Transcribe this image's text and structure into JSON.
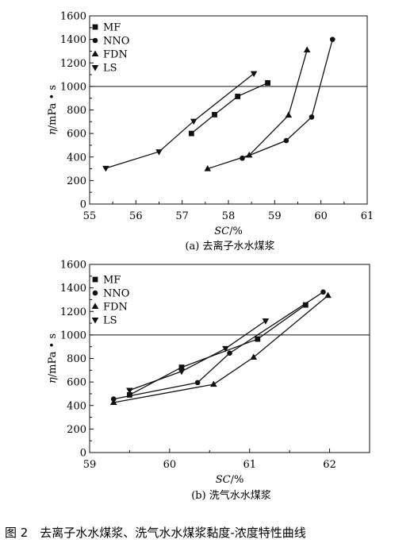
{
  "figure_caption": "图 2　去离子水水煤浆、洗气水水煤浆黏度-浓度特性曲线",
  "chart_data": [
    {
      "type": "line",
      "caption": "(a) 去离子水水煤浆",
      "xlabel_italic": "SC",
      "xlabel_rest": "/%",
      "ylabel_italic": "η",
      "ylabel_rest": "/mPa • s",
      "xlim": [
        55,
        61
      ],
      "ylim": [
        0,
        1600
      ],
      "xticks": [
        "55",
        "56",
        "57",
        "58",
        "59",
        "60",
        "61"
      ],
      "yticks": [
        "0",
        "200",
        "400",
        "600",
        "800",
        "1000",
        "1200",
        "1400",
        "1600"
      ],
      "reference_line_y": 1000,
      "grid": false,
      "legend_position": "top-left",
      "series": [
        {
          "name": "MF",
          "marker": "square",
          "points": [
            [
              57.2,
              600
            ],
            [
              57.7,
              760
            ],
            [
              58.2,
              915
            ],
            [
              58.85,
              1030
            ]
          ]
        },
        {
          "name": "NNO",
          "marker": "circle",
          "points": [
            [
              58.3,
              390
            ],
            [
              59.25,
              540
            ],
            [
              59.8,
              740
            ],
            [
              60.25,
              1400
            ]
          ]
        },
        {
          "name": "FDN",
          "marker": "triangle-up",
          "points": [
            [
              57.55,
              300
            ],
            [
              58.45,
              415
            ],
            [
              59.3,
              755
            ],
            [
              59.7,
              1310
            ]
          ]
        },
        {
          "name": "LS",
          "marker": "triangle-down",
          "points": [
            [
              55.35,
              305
            ],
            [
              56.5,
              445
            ],
            [
              57.25,
              705
            ],
            [
              58.55,
              1110
            ]
          ]
        }
      ]
    },
    {
      "type": "line",
      "caption": "(b) 洗气水水煤浆",
      "xlabel_italic": "SC",
      "xlabel_rest": "/%",
      "ylabel_italic": "η",
      "ylabel_rest": "/mPa • s",
      "xlim": [
        59,
        62.5
      ],
      "ylim": [
        0,
        1600
      ],
      "xticks": [
        "59",
        "60",
        "61",
        "62"
      ],
      "xtick_values": [
        59,
        60,
        61,
        62
      ],
      "yticks": [
        "0",
        "200",
        "400",
        "600",
        "800",
        "1000",
        "1200",
        "1400",
        "1600"
      ],
      "reference_line_y": 1000,
      "grid": false,
      "legend_position": "top-left",
      "series": [
        {
          "name": "MF",
          "marker": "square",
          "points": [
            [
              59.5,
              490
            ],
            [
              60.15,
              725
            ],
            [
              61.1,
              965
            ],
            [
              61.7,
              1255
            ]
          ]
        },
        {
          "name": "NNO",
          "marker": "circle",
          "points": [
            [
              59.3,
              455
            ],
            [
              60.35,
              595
            ],
            [
              60.75,
              845
            ],
            [
              61.92,
              1365
            ]
          ]
        },
        {
          "name": "FDN",
          "marker": "triangle-up",
          "points": [
            [
              59.3,
              425
            ],
            [
              60.55,
              580
            ],
            [
              61.05,
              810
            ],
            [
              61.98,
              1335
            ]
          ]
        },
        {
          "name": "LS",
          "marker": "triangle-down",
          "points": [
            [
              59.5,
              530
            ],
            [
              60.15,
              690
            ],
            [
              60.7,
              885
            ],
            [
              61.2,
              1120
            ]
          ]
        }
      ]
    }
  ]
}
